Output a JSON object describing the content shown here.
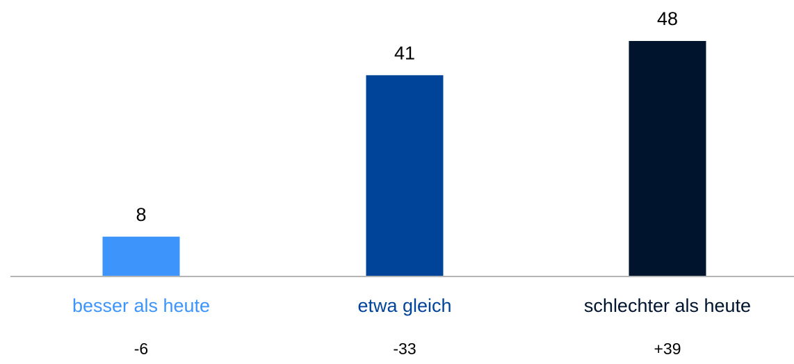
{
  "chart_data": {
    "type": "bar",
    "categories": [
      "besser als heute",
      "etwa gleich",
      "schlechter als heute"
    ],
    "values": [
      8,
      41,
      48
    ],
    "colors": [
      "#3d95fb",
      "#00449a",
      "#00142d"
    ],
    "annotations": [
      "-6",
      "-33",
      "+39"
    ]
  }
}
